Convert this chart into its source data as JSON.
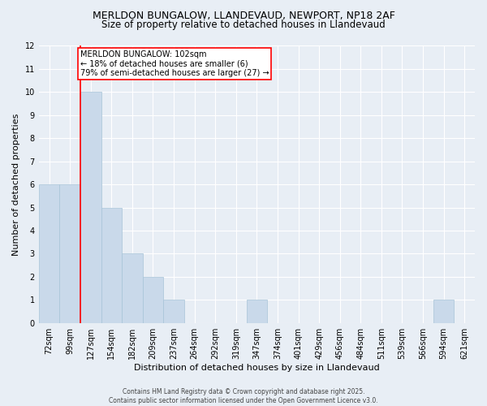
{
  "title1": "MERLDON BUNGALOW, LLANDEVAUD, NEWPORT, NP18 2AF",
  "title2": "Size of property relative to detached houses in Llandevaud",
  "xlabel": "Distribution of detached houses by size in Llandevaud",
  "ylabel": "Number of detached properties",
  "categories": [
    "72sqm",
    "99sqm",
    "127sqm",
    "154sqm",
    "182sqm",
    "209sqm",
    "237sqm",
    "264sqm",
    "292sqm",
    "319sqm",
    "347sqm",
    "374sqm",
    "401sqm",
    "429sqm",
    "456sqm",
    "484sqm",
    "511sqm",
    "539sqm",
    "566sqm",
    "594sqm",
    "621sqm"
  ],
  "values": [
    6,
    6,
    10,
    5,
    3,
    2,
    1,
    0,
    0,
    0,
    1,
    0,
    0,
    0,
    0,
    0,
    0,
    0,
    0,
    1,
    0
  ],
  "bar_color": "#c9d9ea",
  "bar_edge_color": "#a8c4d8",
  "annotation_text": "MERLDON BUNGALOW: 102sqm\n← 18% of detached houses are smaller (6)\n79% of semi-detached houses are larger (27) →",
  "annotation_box_color": "white",
  "annotation_box_edge_color": "red",
  "redline_color": "red",
  "redline_x": 1.5,
  "ylim": [
    0,
    12
  ],
  "yticks": [
    0,
    1,
    2,
    3,
    4,
    5,
    6,
    7,
    8,
    9,
    10,
    11,
    12
  ],
  "footer": "Contains HM Land Registry data © Crown copyright and database right 2025.\nContains public sector information licensed under the Open Government Licence v3.0.",
  "bg_color": "#e8eef5",
  "grid_color": "white",
  "title_fontsize": 9,
  "subtitle_fontsize": 8.5,
  "tick_fontsize": 7,
  "ylabel_fontsize": 8,
  "xlabel_fontsize": 8,
  "annotation_fontsize": 7,
  "footer_fontsize": 5.5
}
